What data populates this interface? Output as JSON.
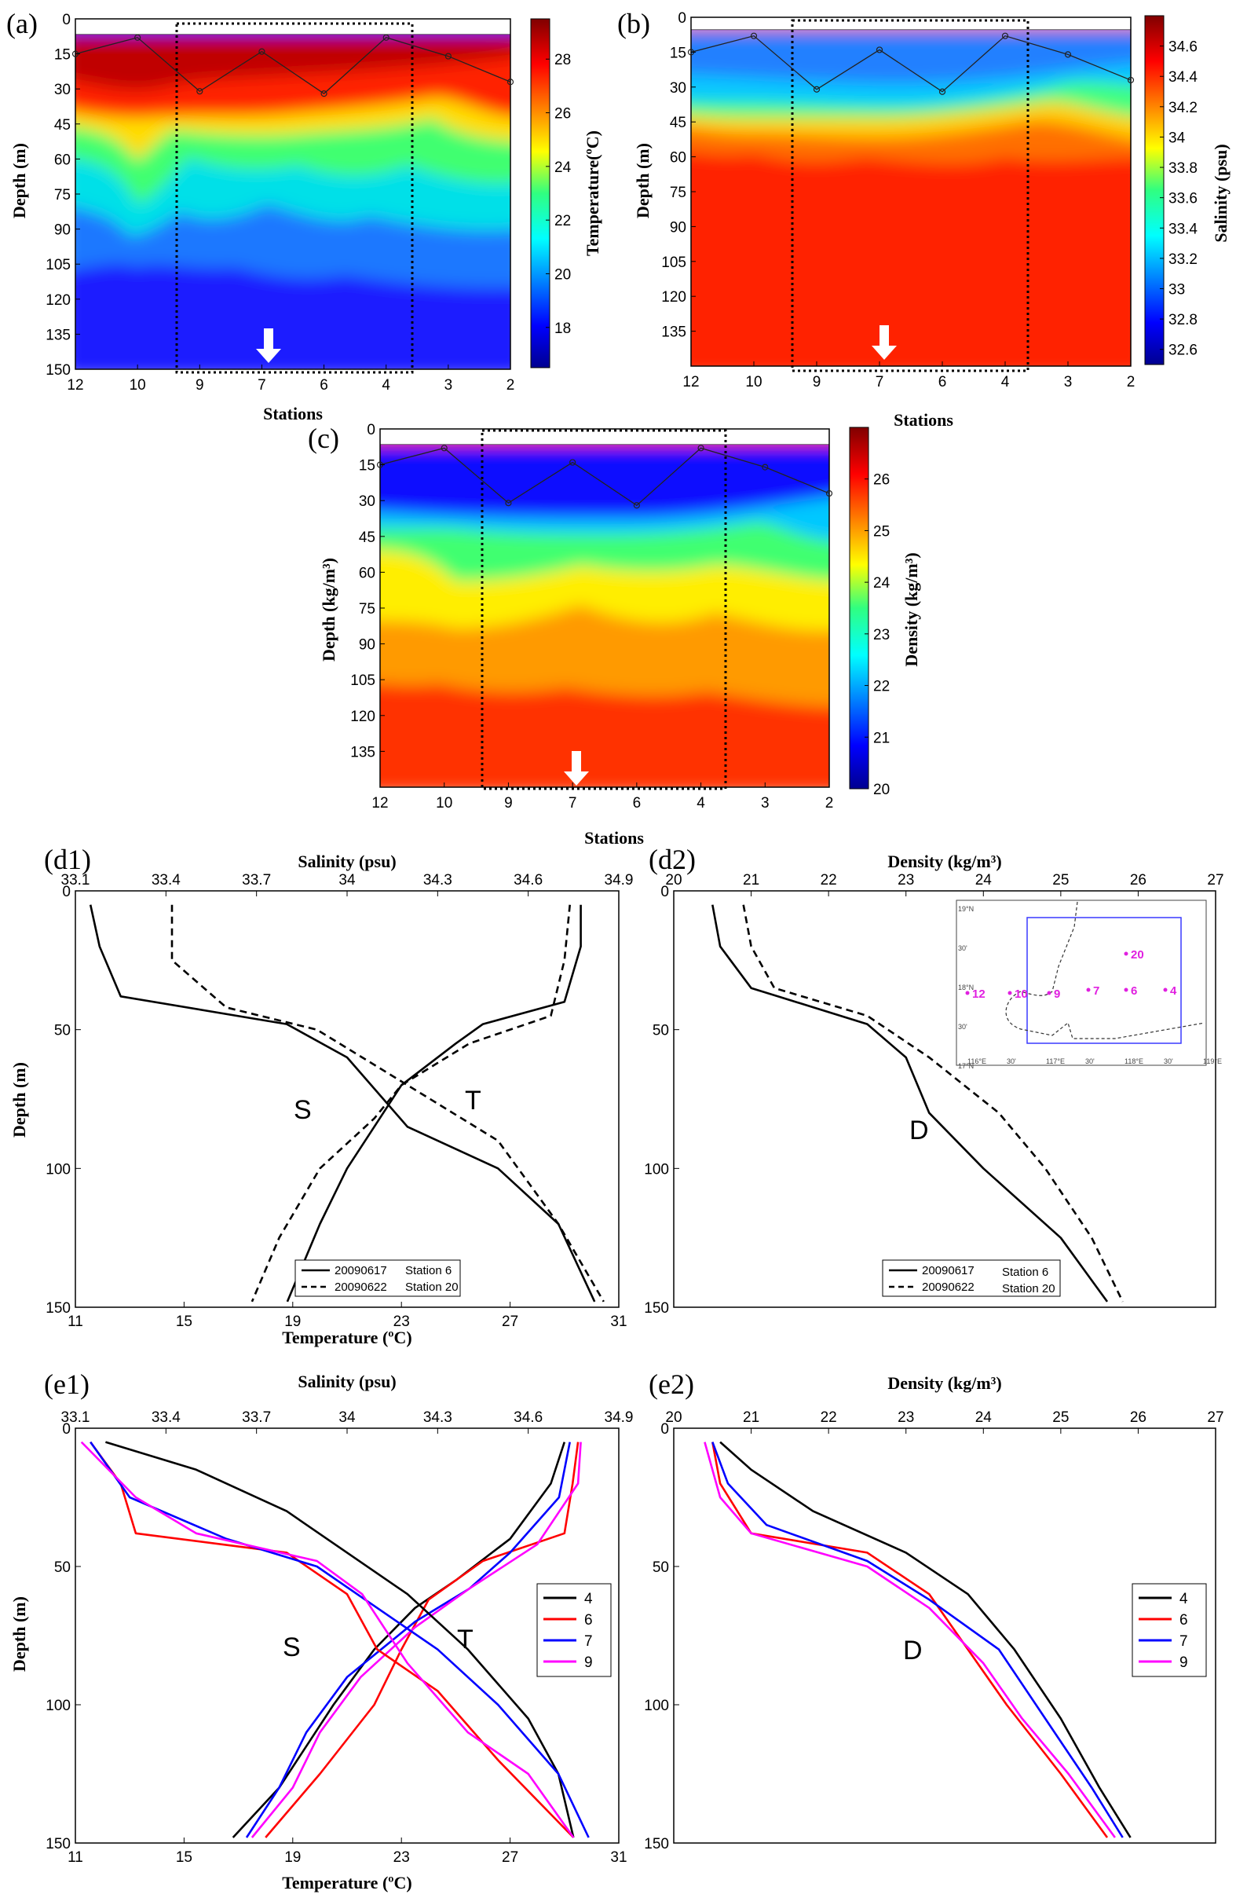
{
  "chart_data": [
    {
      "panel": "(a)",
      "type": "heatmap",
      "xlabel": "Stations",
      "ylabel": "Depth (m)",
      "colorbar_label": "Temperature(ºC)",
      "x_ticks": [
        "12",
        "10",
        "9",
        "7",
        "6",
        "4",
        "3",
        "2"
      ],
      "y_ticks": [
        "0",
        "15",
        "30",
        "45",
        "60",
        "75",
        "90",
        "105",
        "120",
        "135",
        "150"
      ],
      "ylim": [
        0,
        150
      ],
      "clim": [
        16.5,
        29.5
      ],
      "colorbar_ticks": [
        "18",
        "20",
        "22",
        "24",
        "26",
        "28"
      ],
      "track_depths": [
        15,
        8,
        31,
        14,
        32,
        8,
        16,
        27
      ],
      "layer_depths": [
        36,
        52,
        66,
        90,
        120
      ],
      "layer_values": [
        28,
        26,
        24,
        22,
        20,
        18
      ]
    },
    {
      "panel": "(b)",
      "type": "heatmap",
      "xlabel": "Stations",
      "ylabel": "Depth (m)",
      "colorbar_label": "Salinity (psu)",
      "x_ticks": [
        "12",
        "10",
        "9",
        "7",
        "6",
        "4",
        "3",
        "2"
      ],
      "y_ticks": [
        "0",
        "15",
        "30",
        "45",
        "60",
        "75",
        "90",
        "105",
        "120",
        "135"
      ],
      "ylim": [
        0,
        150
      ],
      "clim": [
        32.5,
        34.8
      ],
      "colorbar_ticks": [
        "32.6",
        "32.8",
        "33",
        "33.2",
        "33.4",
        "33.6",
        "33.8",
        "34",
        "34.2",
        "34.4",
        "34.6"
      ],
      "track_depths": [
        15,
        8,
        31,
        14,
        32,
        8,
        16,
        27
      ]
    },
    {
      "panel": "(c)",
      "type": "heatmap",
      "xlabel": "Stations",
      "ylabel": "Depth (kg/m³)",
      "x_ticks": [
        "12",
        "10",
        "9",
        "7",
        "6",
        "4",
        "3",
        "2"
      ],
      "y_ticks": [
        "0",
        "15",
        "30",
        "45",
        "60",
        "75",
        "90",
        "105",
        "120",
        "135"
      ],
      "ylim": [
        0,
        150
      ],
      "clim": [
        20,
        27
      ],
      "colorbar_label": "Density (kg/m³)",
      "colorbar_ticks": [
        "20",
        "21",
        "22",
        "23",
        "24",
        "25",
        "26"
      ],
      "track_depths": [
        15,
        8,
        31,
        14,
        32,
        8,
        16,
        27
      ]
    },
    {
      "panel": "(d1)",
      "type": "line",
      "top_xlabel": "Salinity (psu)",
      "bottom_xlabel": "Temperature (ºC)",
      "ylabel": "Depth (m)",
      "salinity_ticks": [
        "33.1",
        "33.4",
        "33.7",
        "34",
        "34.3",
        "34.6",
        "34.9"
      ],
      "salinity_range": [
        33.1,
        34.9
      ],
      "temperature_ticks": [
        "11",
        "15",
        "19",
        "23",
        "27",
        "31"
      ],
      "temperature_range": [
        11,
        31
      ],
      "y_ticks": [
        "0",
        "50",
        "100",
        "150"
      ],
      "ylim": [
        0,
        150
      ],
      "curve_labels": [
        "S",
        "T"
      ],
      "legend": [
        {
          "date": "20090617",
          "station": "Station 6",
          "style": "solid"
        },
        {
          "date": "20090622",
          "station": "Station 20",
          "style": "dashed"
        }
      ],
      "series": [
        {
          "var": "T",
          "style": "solid",
          "points": [
            [
              29.6,
              5
            ],
            [
              29.6,
              20
            ],
            [
              29,
              40
            ],
            [
              26,
              48
            ],
            [
              25,
              55
            ],
            [
              23,
              70
            ],
            [
              22,
              85
            ],
            [
              21,
              100
            ],
            [
              20,
              120
            ],
            [
              18.8,
              148
            ]
          ]
        },
        {
          "var": "T",
          "style": "dashed",
          "points": [
            [
              29.2,
              5
            ],
            [
              29,
              25
            ],
            [
              28.5,
              45
            ],
            [
              25.5,
              55
            ],
            [
              23,
              70
            ],
            [
              22,
              82
            ],
            [
              20,
              100
            ],
            [
              18.5,
              125
            ],
            [
              17.5,
              148
            ]
          ]
        },
        {
          "var": "S",
          "style": "solid",
          "points": [
            [
              33.15,
              5
            ],
            [
              33.18,
              20
            ],
            [
              33.25,
              38
            ],
            [
              33.8,
              48
            ],
            [
              34.0,
              60
            ],
            [
              34.2,
              85
            ],
            [
              34.5,
              100
            ],
            [
              34.7,
              120
            ],
            [
              34.82,
              148
            ]
          ]
        },
        {
          "var": "S",
          "style": "dashed",
          "points": [
            [
              33.42,
              5
            ],
            [
              33.42,
              25
            ],
            [
              33.6,
              42
            ],
            [
              33.9,
              50
            ],
            [
              34.2,
              70
            ],
            [
              34.5,
              90
            ],
            [
              34.7,
              120
            ],
            [
              34.85,
              148
            ]
          ]
        }
      ]
    },
    {
      "panel": "(d2)",
      "type": "line",
      "top_xlabel": "Density (kg/m³)",
      "ylabel": "",
      "density_ticks": [
        "20",
        "21",
        "22",
        "23",
        "24",
        "25",
        "26",
        "27"
      ],
      "density_range": [
        20,
        27
      ],
      "y_ticks": [
        "0",
        "50",
        "100",
        "150"
      ],
      "ylim": [
        0,
        150
      ],
      "curve_labels": [
        "D"
      ],
      "legend": [
        {
          "date": "20090617",
          "station": "Station 6",
          "style": "solid"
        },
        {
          "date": "20090622",
          "station": "Station 20",
          "style": "dashed"
        }
      ],
      "inset_stations": [
        "12",
        "10",
        "9",
        "7",
        "6",
        "4",
        "20"
      ],
      "inset_lat_ticks": [
        "19°N",
        "30'",
        "18°N",
        "30'",
        "17°N"
      ],
      "inset_lon_ticks": [
        "116°E",
        "30'",
        "117°E",
        "30'",
        "118°E",
        "30'",
        "119°E"
      ],
      "series": [
        {
          "style": "solid",
          "points": [
            [
              20.5,
              5
            ],
            [
              20.6,
              20
            ],
            [
              21,
              35
            ],
            [
              22.5,
              48
            ],
            [
              23,
              60
            ],
            [
              23.3,
              80
            ],
            [
              24,
              100
            ],
            [
              25,
              125
            ],
            [
              25.6,
              148
            ]
          ]
        },
        {
          "style": "dashed",
          "points": [
            [
              20.9,
              5
            ],
            [
              21,
              20
            ],
            [
              21.3,
              35
            ],
            [
              22.5,
              45
            ],
            [
              23.3,
              60
            ],
            [
              24.2,
              80
            ],
            [
              24.8,
              100
            ],
            [
              25.4,
              125
            ],
            [
              25.8,
              148
            ]
          ]
        }
      ]
    },
    {
      "panel": "(e1)",
      "type": "line",
      "top_xlabel": "Salinity (psu)",
      "bottom_xlabel": "Temperature (ºC)",
      "ylabel": "Depth (m)",
      "salinity_ticks": [
        "33.1",
        "33.4",
        "33.7",
        "34",
        "34.3",
        "34.6",
        "34.9"
      ],
      "salinity_range": [
        33.1,
        34.9
      ],
      "temperature_ticks": [
        "11",
        "15",
        "19",
        "23",
        "27",
        "31"
      ],
      "temperature_range": [
        11,
        31
      ],
      "y_ticks": [
        "0",
        "50",
        "100",
        "150"
      ],
      "ylim": [
        0,
        150
      ],
      "curve_labels": [
        "S",
        "T"
      ],
      "legend": [
        "4",
        "6",
        "7",
        "9"
      ],
      "colors": [
        "#000000",
        "#ff0000",
        "#0000ff",
        "#ff00ff"
      ],
      "series": [
        {
          "name": "4",
          "var": "T",
          "points": [
            [
              29,
              5
            ],
            [
              28.5,
              20
            ],
            [
              27,
              40
            ],
            [
              25,
              55
            ],
            [
              23.5,
              65
            ],
            [
              22,
              80
            ],
            [
              20.5,
              100
            ],
            [
              18.5,
              130
            ],
            [
              16.8,
              148
            ]
          ]
        },
        {
          "name": "6",
          "var": "T",
          "points": [
            [
              29.5,
              5
            ],
            [
              29.3,
              20
            ],
            [
              29,
              38
            ],
            [
              26,
              48
            ],
            [
              24,
              62
            ],
            [
              23,
              80
            ],
            [
              22,
              100
            ],
            [
              20,
              125
            ],
            [
              18,
              148
            ]
          ]
        },
        {
          "name": "7",
          "var": "T",
          "points": [
            [
              29.2,
              5
            ],
            [
              28.8,
              25
            ],
            [
              27,
              45
            ],
            [
              25.5,
              58
            ],
            [
              23.5,
              70
            ],
            [
              21,
              90
            ],
            [
              19.5,
              110
            ],
            [
              18.5,
              130
            ],
            [
              17.3,
              148
            ]
          ]
        },
        {
          "name": "9",
          "var": "T",
          "points": [
            [
              29.6,
              5
            ],
            [
              29.5,
              20
            ],
            [
              28,
              42
            ],
            [
              25.5,
              58
            ],
            [
              23.5,
              72
            ],
            [
              21.5,
              90
            ],
            [
              20,
              110
            ],
            [
              19,
              130
            ],
            [
              17.5,
              148
            ]
          ]
        },
        {
          "name": "4",
          "var": "S",
          "points": [
            [
              33.2,
              5
            ],
            [
              33.5,
              15
            ],
            [
              33.8,
              30
            ],
            [
              34.0,
              45
            ],
            [
              34.2,
              60
            ],
            [
              34.4,
              80
            ],
            [
              34.6,
              105
            ],
            [
              34.7,
              125
            ],
            [
              34.75,
              148
            ]
          ]
        },
        {
          "name": "6",
          "var": "S",
          "points": [
            [
              33.15,
              5
            ],
            [
              33.25,
              20
            ],
            [
              33.3,
              38
            ],
            [
              33.8,
              45
            ],
            [
              34.0,
              60
            ],
            [
              34.1,
              80
            ],
            [
              34.3,
              95
            ],
            [
              34.5,
              120
            ],
            [
              34.75,
              148
            ]
          ]
        },
        {
          "name": "7",
          "var": "S",
          "points": [
            [
              33.15,
              5
            ],
            [
              33.28,
              25
            ],
            [
              33.6,
              40
            ],
            [
              33.9,
              50
            ],
            [
              34.1,
              65
            ],
            [
              34.3,
              80
            ],
            [
              34.5,
              100
            ],
            [
              34.7,
              125
            ],
            [
              34.8,
              148
            ]
          ]
        },
        {
          "name": "9",
          "var": "S",
          "points": [
            [
              33.12,
              5
            ],
            [
              33.3,
              25
            ],
            [
              33.5,
              38
            ],
            [
              33.9,
              48
            ],
            [
              34.05,
              60
            ],
            [
              34.2,
              85
            ],
            [
              34.4,
              110
            ],
            [
              34.6,
              125
            ],
            [
              34.75,
              148
            ]
          ]
        }
      ]
    },
    {
      "panel": "(e2)",
      "type": "line",
      "top_xlabel": "Density (kg/m³)",
      "ylabel": "",
      "density_ticks": [
        "20",
        "21",
        "22",
        "23",
        "24",
        "25",
        "26",
        "27"
      ],
      "density_range": [
        20,
        27
      ],
      "y_ticks": [
        "0",
        "50",
        "100",
        "150"
      ],
      "ylim": [
        0,
        150
      ],
      "curve_labels": [
        "D"
      ],
      "legend": [
        "4",
        "6",
        "7",
        "9"
      ],
      "colors": [
        "#000000",
        "#ff0000",
        "#0000ff",
        "#ff00ff"
      ],
      "series": [
        {
          "name": "4",
          "points": [
            [
              20.6,
              5
            ],
            [
              21,
              15
            ],
            [
              21.8,
              30
            ],
            [
              23,
              45
            ],
            [
              23.8,
              60
            ],
            [
              24.4,
              80
            ],
            [
              25,
              105
            ],
            [
              25.5,
              130
            ],
            [
              25.9,
              148
            ]
          ]
        },
        {
          "name": "6",
          "points": [
            [
              20.5,
              5
            ],
            [
              20.6,
              20
            ],
            [
              21,
              38
            ],
            [
              22.5,
              45
            ],
            [
              23.3,
              60
            ],
            [
              23.8,
              80
            ],
            [
              24.3,
              100
            ],
            [
              25,
              125
            ],
            [
              25.6,
              148
            ]
          ]
        },
        {
          "name": "7",
          "points": [
            [
              20.5,
              5
            ],
            [
              20.7,
              20
            ],
            [
              21.2,
              35
            ],
            [
              22.5,
              48
            ],
            [
              23.3,
              62
            ],
            [
              24.2,
              80
            ],
            [
              24.8,
              105
            ],
            [
              25.4,
              130
            ],
            [
              25.8,
              148
            ]
          ]
        },
        {
          "name": "9",
          "points": [
            [
              20.4,
              5
            ],
            [
              20.6,
              25
            ],
            [
              21,
              38
            ],
            [
              22.5,
              50
            ],
            [
              23.3,
              65
            ],
            [
              24,
              85
            ],
            [
              24.5,
              105
            ],
            [
              25.1,
              125
            ],
            [
              25.7,
              148
            ]
          ]
        }
      ]
    }
  ]
}
